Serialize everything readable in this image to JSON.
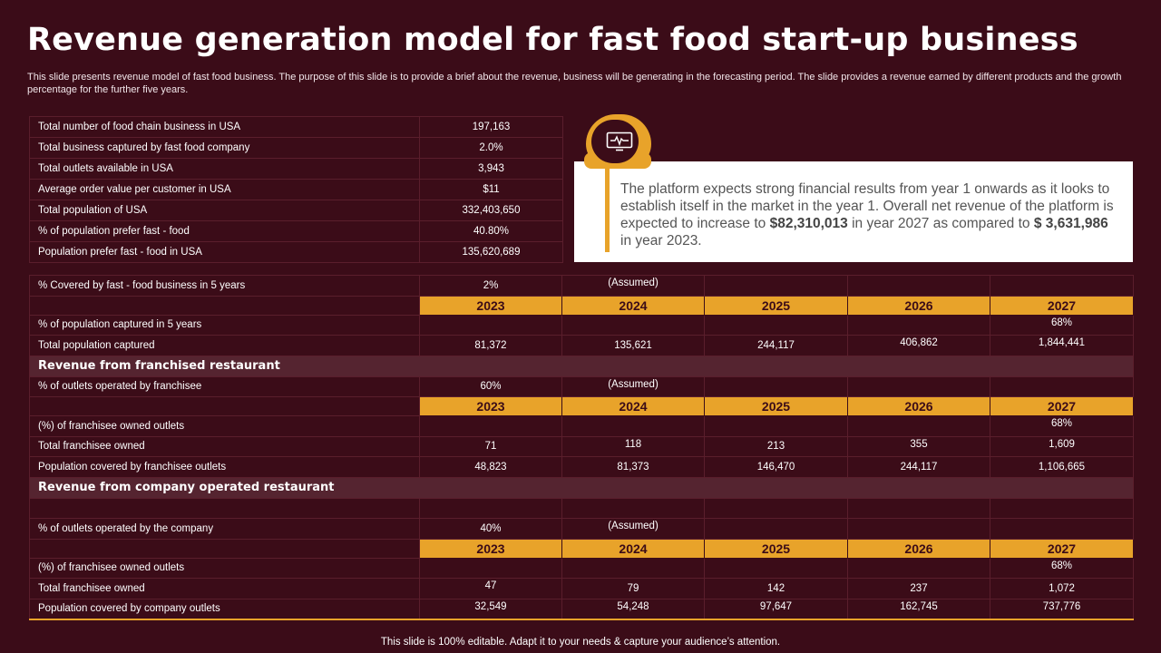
{
  "title": "Revenue generation model for fast food start-up business",
  "description": "This slide presents revenue model of fast food business. The purpose of this slide is to provide a brief about the revenue, business will be generating in the forecasting period. The slide provides a revenue earned by different products and the growth percentage for the further five years.",
  "summary_table": [
    {
      "label": "Total number of food chain business in USA",
      "value": "197,163"
    },
    {
      "label": "Total business captured by fast food company",
      "value": "2.0%"
    },
    {
      "label": "Total outlets available in USA",
      "value": "3,943"
    },
    {
      "label": "Average order value per customer in USA",
      "value": "$11"
    },
    {
      "label": "Total population of USA",
      "value": "332,403,650"
    },
    {
      "label": "% of population prefer fast - food",
      "value": "40.80%"
    },
    {
      "label": "Population prefer fast - food in USA",
      "value": "135,620,689"
    }
  ],
  "callout": {
    "icon": "monitor-heartbeat-icon",
    "text_1": "The platform expects strong financial results from year 1 onwards as it looks to establish itself in the market in the year 1. Overall net revenue of the platform is expected to increase to ",
    "amount_1": "$82,310,013",
    "text_2": " in year 2027 as compared to ",
    "amount_2": "$ 3,631,986",
    "text_3": " in year 2023."
  },
  "years": [
    "2023",
    "2024",
    "2025",
    "2026",
    "2027"
  ],
  "assumed_label": "(Assumed)",
  "coverage": {
    "label": "% Covered by fast - food business in 5 years",
    "value": "2%",
    "pct_label": "% of population captured in 5 years",
    "pct_value": "68%",
    "total_label": "Total population captured",
    "total_values": [
      "81,372",
      "135,621",
      "244,117",
      "406,862",
      "1,844,441"
    ]
  },
  "franchised": {
    "heading": "Revenue from franchised restaurant",
    "operated_label": "% of outlets operated by franchisee",
    "operated_value": "60%",
    "pct_label": "(%) of franchisee owned outlets",
    "pct_value": "68%",
    "owned_label": "Total franchisee owned",
    "owned_values": [
      "71",
      "118",
      "213",
      "355",
      "1,609"
    ],
    "pop_label": "Population covered by franchisee outlets",
    "pop_values": [
      "48,823",
      "81,373",
      "146,470",
      "244,117",
      "1,106,665"
    ]
  },
  "company": {
    "heading": "Revenue from company operated restaurant",
    "operated_label": "% of outlets operated by the company",
    "operated_value": "40%",
    "pct_label": "(%) of franchisee owned outlets",
    "pct_value": "68%",
    "owned_label": "Total franchisee owned",
    "owned_values": [
      "47",
      "79",
      "142",
      "237",
      "1,072"
    ],
    "pop_label": "Population covered by company outlets",
    "pop_values": [
      "32,549",
      "54,248",
      "97,647",
      "162,745",
      "737,776"
    ]
  },
  "footer": "This slide is 100% editable. Adapt it to your needs & capture your audience’s attention."
}
